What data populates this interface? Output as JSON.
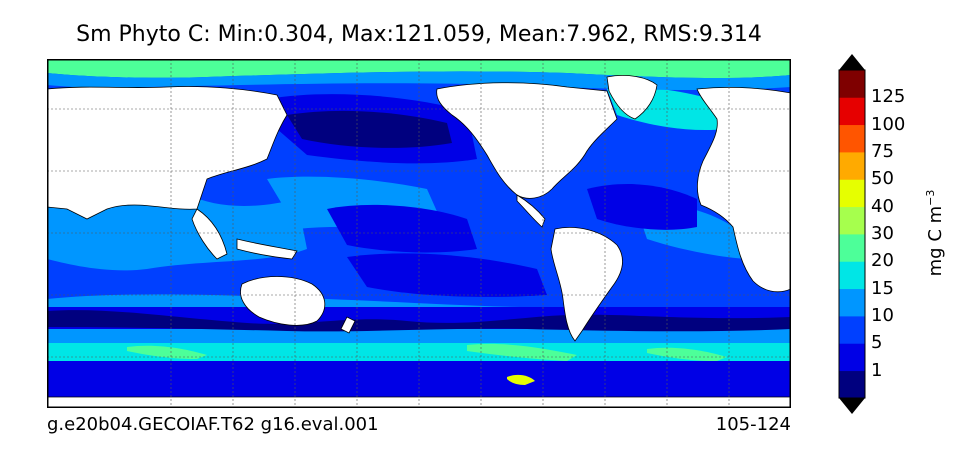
{
  "title": "Sm Phyto C: Min:0.304, Max:121.059, Mean:7.962, RMS:9.314",
  "footer": {
    "case": "g.e20b04.GECOIAF.T62 g16.eval.001",
    "years": "105-124"
  },
  "colorbar": {
    "label_main": "mg C m",
    "label_exp": "−3",
    "ticks": [
      "1",
      "5",
      "10",
      "15",
      "20",
      "30",
      "40",
      "50",
      "75",
      "100",
      "125"
    ],
    "colors": [
      "#00007f",
      "#0000e6",
      "#0040ff",
      "#0096ff",
      "#00e6e6",
      "#4dff99",
      "#a6ff4d",
      "#e6ff00",
      "#ffaa00",
      "#ff5500",
      "#e60000",
      "#7f0000"
    ]
  },
  "map": {
    "projection": "cylindrical",
    "field_colors": {
      "dark": "#00007f",
      "deep": "#0000e6",
      "mid": "#0040ff",
      "light": "#0096ff",
      "cyan": "#00e6e6",
      "green": "#4dff99",
      "yellow": "#e6ff00",
      "land": "#ffffff"
    }
  }
}
